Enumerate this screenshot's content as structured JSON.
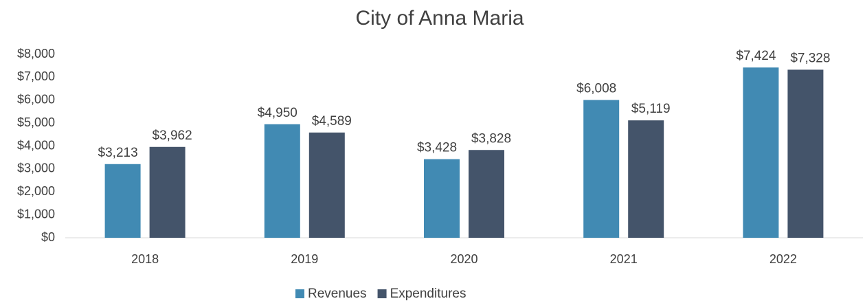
{
  "chart_data": {
    "type": "bar",
    "title": "City of Anna Maria",
    "categories": [
      "2018",
      "2019",
      "2020",
      "2021",
      "2022"
    ],
    "series": [
      {
        "name": "Revenues",
        "color": "#418ab3",
        "values": [
          3213,
          4950,
          3428,
          6008,
          7424
        ],
        "value_labels": [
          "$3,213",
          "$4,950",
          "$3,428",
          "$6,008",
          "$7,424"
        ]
      },
      {
        "name": "Expenditures",
        "color": "#44546a",
        "values": [
          3962,
          4589,
          3828,
          5119,
          7328
        ],
        "value_labels": [
          "$3,962",
          "$4,589",
          "$3,828",
          "$5,119",
          "$7,328"
        ]
      }
    ],
    "ylim": [
      0,
      8000
    ],
    "yticks": [
      {
        "value": 0,
        "label": "$0"
      },
      {
        "value": 1000,
        "label": "$1,000"
      },
      {
        "value": 2000,
        "label": "$2,000"
      },
      {
        "value": 3000,
        "label": "$3,000"
      },
      {
        "value": 4000,
        "label": "$4,000"
      },
      {
        "value": 5000,
        "label": "$5,000"
      },
      {
        "value": 6000,
        "label": "$6,000"
      },
      {
        "value": 7000,
        "label": "$7,000"
      },
      {
        "value": 8000,
        "label": "$8,000"
      }
    ],
    "grid": false,
    "legend": "bottom"
  }
}
